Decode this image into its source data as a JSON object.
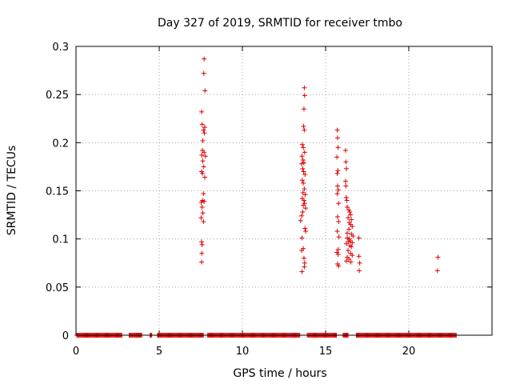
{
  "chart_data": {
    "type": "scatter",
    "title": "Day 327 of 2019, SRMTID for receiver tmbo",
    "xlabel": "GPS time / hours",
    "ylabel": "SRMTID / TECUs",
    "xlim": [
      0,
      25
    ],
    "ylim": [
      0,
      0.3
    ],
    "xticks": [
      0,
      5,
      10,
      15,
      20
    ],
    "xtick_labels": [
      "0",
      "5",
      "10",
      "15",
      "20"
    ],
    "yticks": [
      0,
      0.05,
      0.1,
      0.15,
      0.2,
      0.25,
      0.3
    ],
    "ytick_labels": [
      "0",
      "0.05",
      "0.1",
      "0.15",
      "0.2",
      "0.25",
      "0.3"
    ],
    "grid": true,
    "marker": "+",
    "series_color": "#dd0000",
    "zero_ranges": [
      [
        0.05,
        2.75
      ],
      [
        3.2,
        3.95
      ],
      [
        4.45,
        4.55
      ],
      [
        4.9,
        7.65
      ],
      [
        7.9,
        13.45
      ],
      [
        13.9,
        15.65
      ],
      [
        16.05,
        16.35
      ],
      [
        16.85,
        22.85
      ]
    ],
    "zero_step": 0.05,
    "points": [
      [
        7.7,
        0.287
      ],
      [
        7.68,
        0.272
      ],
      [
        7.75,
        0.254
      ],
      [
        7.55,
        0.232
      ],
      [
        7.58,
        0.219
      ],
      [
        7.74,
        0.216
      ],
      [
        7.66,
        0.213
      ],
      [
        7.72,
        0.21
      ],
      [
        7.62,
        0.202
      ],
      [
        7.6,
        0.192
      ],
      [
        7.7,
        0.19
      ],
      [
        7.56,
        0.187
      ],
      [
        7.78,
        0.186
      ],
      [
        7.62,
        0.181
      ],
      [
        7.68,
        0.175
      ],
      [
        7.55,
        0.17
      ],
      [
        7.6,
        0.168
      ],
      [
        7.74,
        0.164
      ],
      [
        7.66,
        0.147
      ],
      [
        7.6,
        0.14
      ],
      [
        7.7,
        0.139
      ],
      [
        7.53,
        0.138
      ],
      [
        7.58,
        0.133
      ],
      [
        7.62,
        0.127
      ],
      [
        7.52,
        0.122
      ],
      [
        7.66,
        0.118
      ],
      [
        7.55,
        0.097
      ],
      [
        7.58,
        0.094
      ],
      [
        7.56,
        0.085
      ],
      [
        7.55,
        0.076
      ],
      [
        13.72,
        0.257
      ],
      [
        13.74,
        0.249
      ],
      [
        13.7,
        0.235
      ],
      [
        13.68,
        0.217
      ],
      [
        13.72,
        0.213
      ],
      [
        13.6,
        0.198
      ],
      [
        13.66,
        0.195
      ],
      [
        13.74,
        0.19
      ],
      [
        13.58,
        0.186
      ],
      [
        13.64,
        0.182
      ],
      [
        13.7,
        0.179
      ],
      [
        13.56,
        0.178
      ],
      [
        13.62,
        0.173
      ],
      [
        13.68,
        0.17
      ],
      [
        13.76,
        0.167
      ],
      [
        13.6,
        0.161
      ],
      [
        13.66,
        0.158
      ],
      [
        13.72,
        0.152
      ],
      [
        13.64,
        0.148
      ],
      [
        13.78,
        0.146
      ],
      [
        13.6,
        0.142
      ],
      [
        13.7,
        0.14
      ],
      [
        13.74,
        0.137
      ],
      [
        13.66,
        0.135
      ],
      [
        13.8,
        0.132
      ],
      [
        13.62,
        0.128
      ],
      [
        13.56,
        0.124
      ],
      [
        13.5,
        0.119
      ],
      [
        13.76,
        0.111
      ],
      [
        13.8,
        0.108
      ],
      [
        13.58,
        0.101
      ],
      [
        13.66,
        0.09
      ],
      [
        13.56,
        0.088
      ],
      [
        13.7,
        0.08
      ],
      [
        13.74,
        0.075
      ],
      [
        13.72,
        0.071
      ],
      [
        13.58,
        0.066
      ],
      [
        15.7,
        0.213
      ],
      [
        15.72,
        0.205
      ],
      [
        15.75,
        0.195
      ],
      [
        16.2,
        0.192
      ],
      [
        15.68,
        0.185
      ],
      [
        16.22,
        0.18
      ],
      [
        16.25,
        0.173
      ],
      [
        15.74,
        0.171
      ],
      [
        15.7,
        0.168
      ],
      [
        16.2,
        0.16
      ],
      [
        16.22,
        0.155
      ],
      [
        15.72,
        0.155
      ],
      [
        15.76,
        0.151
      ],
      [
        15.7,
        0.147
      ],
      [
        16.24,
        0.143
      ],
      [
        16.28,
        0.14
      ],
      [
        15.78,
        0.137
      ],
      [
        16.3,
        0.133
      ],
      [
        16.4,
        0.13
      ],
      [
        16.45,
        0.128
      ],
      [
        16.5,
        0.125
      ],
      [
        15.72,
        0.123
      ],
      [
        16.35,
        0.122
      ],
      [
        16.55,
        0.12
      ],
      [
        15.78,
        0.118
      ],
      [
        16.42,
        0.117
      ],
      [
        16.5,
        0.115
      ],
      [
        16.6,
        0.113
      ],
      [
        16.4,
        0.11
      ],
      [
        15.7,
        0.108
      ],
      [
        16.3,
        0.106
      ],
      [
        16.55,
        0.105
      ],
      [
        16.65,
        0.103
      ],
      [
        15.8,
        0.102
      ],
      [
        16.3,
        0.101
      ],
      [
        16.42,
        0.1
      ],
      [
        17.0,
        0.101
      ],
      [
        16.5,
        0.098
      ],
      [
        16.36,
        0.097
      ],
      [
        16.6,
        0.096
      ],
      [
        16.25,
        0.095
      ],
      [
        16.45,
        0.093
      ],
      [
        16.55,
        0.092
      ],
      [
        15.76,
        0.089
      ],
      [
        16.35,
        0.088
      ],
      [
        15.68,
        0.086
      ],
      [
        16.5,
        0.085
      ],
      [
        15.75,
        0.084
      ],
      [
        16.6,
        0.083
      ],
      [
        17.0,
        0.082
      ],
      [
        16.3,
        0.081
      ],
      [
        16.4,
        0.079
      ],
      [
        16.25,
        0.077
      ],
      [
        16.52,
        0.076
      ],
      [
        17.05,
        0.075
      ],
      [
        15.72,
        0.074
      ],
      [
        15.78,
        0.072
      ],
      [
        17.02,
        0.067
      ],
      [
        21.75,
        0.081
      ],
      [
        21.72,
        0.067
      ]
    ]
  }
}
